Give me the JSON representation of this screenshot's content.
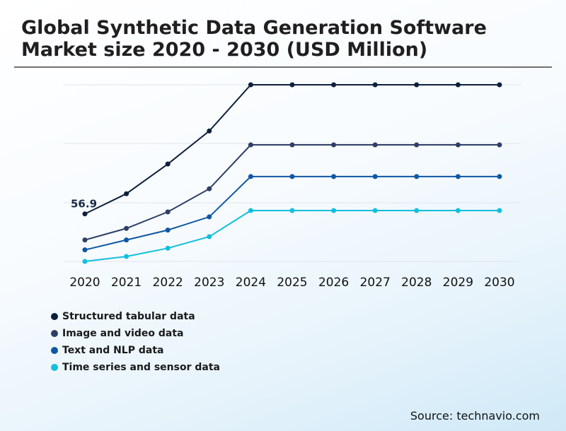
{
  "title": "Global Synthetic Data Generation Software Market size 2020 - 2030 (USD Million)",
  "source": "Source: technavio.com",
  "chart_data": {
    "type": "line",
    "categories": [
      "2020",
      "2021",
      "2022",
      "2023",
      "2024",
      "2025",
      "2026",
      "2027",
      "2028",
      "2029",
      "2030"
    ],
    "series": [
      {
        "name": "Structured tabular data",
        "color": "#0d1f3c",
        "values": [
          56.9,
          63.0,
          72.0,
          82.0,
          96.0,
          96.0,
          96.0,
          96.0,
          96.0,
          96.0,
          96.0
        ]
      },
      {
        "name": "Image and video data",
        "color": "#2e3f66",
        "values": [
          49.0,
          52.5,
          57.5,
          64.5,
          77.8,
          77.8,
          77.8,
          77.8,
          77.8,
          77.8,
          77.8
        ]
      },
      {
        "name": "Text and NLP data",
        "color": "#0f57a3",
        "values": [
          46.0,
          49.0,
          52.0,
          56.0,
          68.2,
          68.2,
          68.2,
          68.2,
          68.2,
          68.2,
          68.2
        ]
      },
      {
        "name": "Time series and sensor data",
        "color": "#12bfdd",
        "values": [
          42.5,
          44.0,
          46.5,
          50.0,
          57.9,
          57.9,
          57.9,
          57.9,
          57.9,
          57.9,
          57.9
        ]
      }
    ],
    "annotations": [
      {
        "series": 0,
        "index": 0,
        "label": "56.9"
      }
    ],
    "ylim": [
      42.5,
      96.0
    ],
    "grid": true,
    "legend": "bottom-left",
    "xlabel": "",
    "ylabel": ""
  }
}
